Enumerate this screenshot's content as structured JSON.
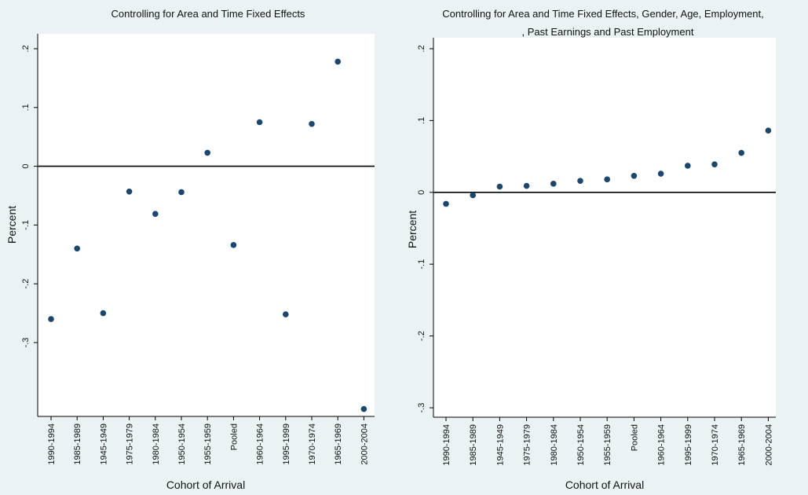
{
  "colors": {
    "background": "#eaf2f3",
    "plot_area": "#ffffff",
    "marker": "#1a476f",
    "axis": "#000000"
  },
  "chart_data": [
    {
      "type": "scatter",
      "title": "Controlling for Area and Time Fixed Effects",
      "subtitle": "",
      "xlabel": "Cohort of Arrival",
      "ylabel": "Percent",
      "categories": [
        "1990-1994",
        "1985-1989",
        "1945-1949",
        "1975-1979",
        "1980-1984",
        "1950-1954",
        "1955-1959",
        "Pooled",
        "1960-1964",
        "1995-1999",
        "1970-1974",
        "1965-1969",
        "2000-2004"
      ],
      "values": [
        -0.26,
        -0.14,
        -0.25,
        -0.043,
        -0.081,
        -0.044,
        0.023,
        -0.134,
        0.075,
        -0.252,
        0.072,
        0.178,
        -0.413
      ],
      "yticks": [
        0.2,
        0.1,
        0,
        -0.1,
        -0.2,
        -0.3
      ],
      "ytick_labels": [
        ".2",
        ".1",
        "0",
        "-.1",
        "-.2",
        "-.3"
      ],
      "ylim": [
        -0.42,
        0.22
      ],
      "reference_line": 0,
      "grid": false
    },
    {
      "type": "scatter",
      "title": "Controlling for Area and Time Fixed Effects, Gender, Age, Employment,",
      "subtitle": ", Past Earnings and Past Employment",
      "xlabel": "Cohort of Arrival",
      "ylabel": "Percent",
      "categories": [
        "1990-1994",
        "1985-1989",
        "1945-1949",
        "1975-1979",
        "1980-1984",
        "1950-1954",
        "1955-1959",
        "Pooled",
        "1960-1964",
        "1995-1999",
        "1970-1974",
        "1965-1969",
        "2000-2004"
      ],
      "values": [
        -0.016,
        -0.004,
        0.008,
        0.009,
        0.012,
        0.016,
        0.018,
        0.023,
        0.026,
        0.037,
        0.039,
        0.055,
        0.086
      ],
      "yticks": [
        0.2,
        0.1,
        0,
        -0.1,
        -0.2,
        -0.3
      ],
      "ytick_labels": [
        ".2",
        ".1",
        "0",
        "-.1",
        "-.2",
        "-.3"
      ],
      "ylim": [
        -0.31,
        0.21
      ],
      "reference_line": 0,
      "grid": false
    }
  ]
}
